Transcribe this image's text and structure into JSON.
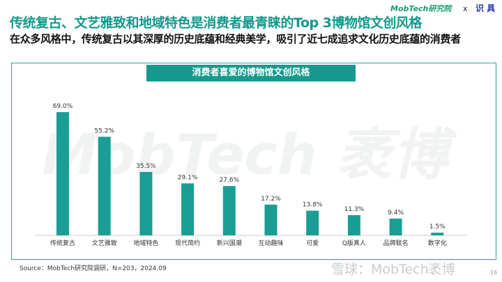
{
  "header": {
    "title": "传统复古、文艺雅致和地域特色是消费者最青睐的Top  3博物馆文创风格",
    "subtitle": "在众多风格中，传统复古以其深厚的历史底蕴和经典美学，吸引了近七成追求文化历史底蕴的消费者",
    "logo": "MobTech研究院",
    "x": "x",
    "partner": "识 具"
  },
  "watermark": "MobTech 袤博",
  "chart_data": {
    "type": "bar",
    "title": "消费者喜爱的博物馆文创风格",
    "categories": [
      "传统复古",
      "文艺雅致",
      "地域特色",
      "现代简约",
      "新兴国潮",
      "互动趣味",
      "可爱",
      "Q版真人",
      "品牌联名",
      "数字化"
    ],
    "values": [
      69.0,
      55.2,
      35.5,
      29.1,
      27.6,
      17.2,
      13.8,
      11.3,
      9.4,
      1.5
    ],
    "labels": [
      "69.0%",
      "55.2%",
      "35.5%",
      "29.1%",
      "27.6%",
      "17.2%",
      "13.8%",
      "11.3%",
      "9.4%",
      "1.5%"
    ],
    "ylim": [
      0,
      75
    ],
    "color": "#1a9e94",
    "grid": false
  },
  "footer": {
    "source": "Source：MobTech研究院调研，N=203，2024.09",
    "xueqiu": "雪球：MobTech袤博",
    "page": "16"
  }
}
